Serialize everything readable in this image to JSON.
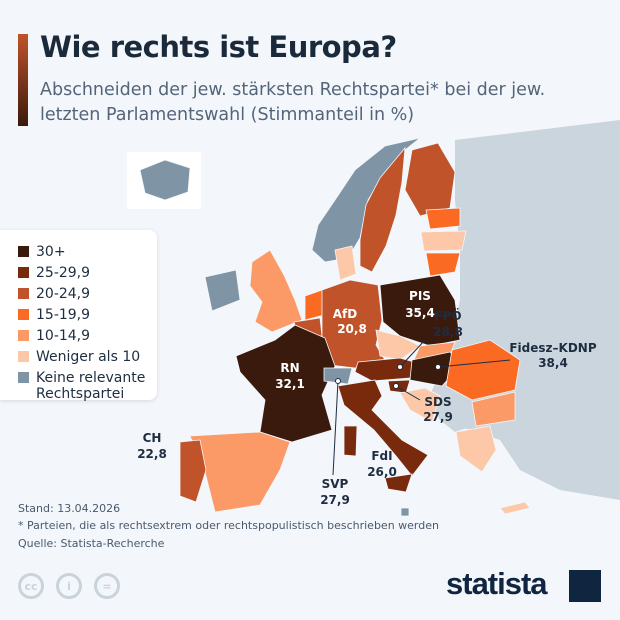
{
  "header": {
    "title": "Wie rechts ist Europa?",
    "subtitle": "Abschneiden der jew. stärksten Rechtspartei* bei der jew. letzten Parlamentswahl (Stimmanteil in %)"
  },
  "legend": [
    {
      "label": "30+",
      "color": "#3a1a0c"
    },
    {
      "label": "25-29,9",
      "color": "#7a2a0c"
    },
    {
      "label": "20-24,9",
      "color": "#c0532a"
    },
    {
      "label": "15-19,9",
      "color": "#fb6a22"
    },
    {
      "label": "10-14,9",
      "color": "#fb9a66"
    },
    {
      "label": "Weniger als 10",
      "color": "#fdc8a8"
    },
    {
      "label": "Keine relevante Rechtspartei",
      "color": "#7f95a6"
    }
  ],
  "colors": {
    "non_eu": "#cbd5de",
    "background": "#f3f6fa"
  },
  "map_labels": {
    "de": {
      "party": "AfD",
      "value": "20,8"
    },
    "pl": {
      "party": "PIS",
      "value": "35,4"
    },
    "at": {
      "party": "FPÖ",
      "value": "28,8"
    },
    "hu": {
      "party": "Fidesz–KDNP",
      "value": "38,4"
    },
    "fr": {
      "party": "RN",
      "value": "32,1"
    },
    "si": {
      "party": "SDS",
      "value": "27,9"
    },
    "it_st": {
      "party": "SVP",
      "value": "27,9"
    },
    "it": {
      "party": "FdI",
      "value": "26,0"
    },
    "pt": {
      "party": "CH",
      "value": "22,8"
    }
  },
  "footer": {
    "date": "Stand: 13.04.2026",
    "note": "* Parteien, die als rechtsextrem oder rechtspopulistisch beschrieben werden",
    "source": "Quelle: Statista-Recherche",
    "brand": "statista"
  }
}
